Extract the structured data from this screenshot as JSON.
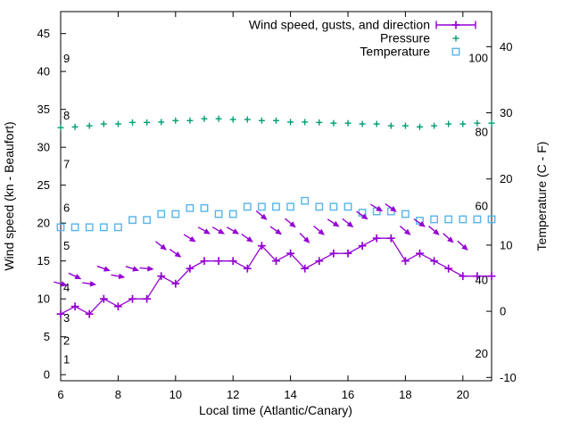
{
  "chart_data": {
    "type": "line",
    "xlabel": "Local time (Atlantic/Canary)",
    "ylabel": "Wind speed (kn - Beaufort)",
    "y2label": "Temperature (C - F)",
    "colors": {
      "wind": "#9400d3",
      "pressure": "#009e73",
      "temperature": "#56b4e9",
      "axis": "#000000"
    },
    "legend": {
      "position": "top-right-inside",
      "entries": [
        {
          "label": "Wind speed, gusts, and direction",
          "sample": "errorbar",
          "color": "#9400d3"
        },
        {
          "label": "Pressure",
          "sample": "plus",
          "color": "#009e73"
        },
        {
          "label": "Temperature",
          "sample": "square",
          "color": "#56b4e9"
        }
      ]
    },
    "axes": {
      "x": {
        "range": [
          6,
          21
        ],
        "ticks": [
          6,
          8,
          10,
          12,
          14,
          16,
          18,
          20
        ]
      },
      "y_wind_kn": {
        "range": [
          -0.8,
          47.9
        ],
        "ticks": [
          0,
          5,
          10,
          15,
          20,
          25,
          30,
          35,
          40,
          45
        ]
      },
      "y_temperature_c": {
        "range": [
          -10.5,
          45.3
        ],
        "ticks": [
          40,
          30,
          20,
          10,
          0,
          -10
        ]
      },
      "y_pressure_scale": {
        "range": [
          12.7,
          112.6
        ],
        "inner_tick_labels": [
          100,
          80,
          60,
          40,
          20
        ]
      },
      "beaufort_inner_labels": [
        {
          "label": "1",
          "kn": 2
        },
        {
          "label": "2",
          "kn": 4.5
        },
        {
          "label": "3",
          "kn": 7.5
        },
        {
          "label": "4",
          "kn": 11.5
        },
        {
          "label": "5",
          "kn": 17
        },
        {
          "label": "6",
          "kn": 22
        },
        {
          "label": "7",
          "kn": 27.8
        },
        {
          "label": "8",
          "kn": 34.2
        },
        {
          "label": "9",
          "kn": 41.7
        }
      ]
    },
    "x": [
      6,
      6.5,
      7,
      7.5,
      8,
      8.5,
      9,
      9.5,
      10,
      10.5,
      11,
      11.5,
      12,
      12.5,
      13,
      13.5,
      14,
      14.5,
      15,
      15.5,
      16,
      16.5,
      17,
      17.5,
      18,
      18.5,
      19,
      19.5,
      20,
      20.5,
      21
    ],
    "series": [
      {
        "name": "wind_speed_kn",
        "style": "line+plus",
        "values": [
          8,
          9,
          8,
          10,
          9,
          10,
          10,
          13,
          12,
          14,
          15,
          15,
          15,
          14,
          17,
          15,
          16,
          14,
          15,
          16,
          16,
          17,
          18,
          18,
          15,
          16,
          15,
          14,
          13,
          13,
          13
        ]
      },
      {
        "name": "wind_gust_kn",
        "style": "direction-arrows",
        "x": [
          6,
          6.5,
          7,
          7.5,
          8,
          8.5,
          9,
          9.5,
          10,
          10.5,
          11,
          11.5,
          12,
          12.5,
          13,
          13.5,
          14,
          14.5,
          15,
          15.5,
          16,
          16.5,
          17,
          17.5,
          18,
          18.5,
          19,
          19.5,
          20
        ],
        "values": [
          12,
          13,
          12,
          14,
          13,
          14,
          14,
          17,
          16,
          18,
          19,
          19,
          19,
          18,
          21,
          19,
          20,
          18,
          19,
          20,
          20,
          21,
          22,
          22,
          19,
          20,
          19,
          18,
          17
        ],
        "direction_deg_from_east": [
          15,
          25,
          8,
          20,
          10,
          18,
          5,
          38,
          35,
          32,
          30,
          30,
          30,
          35,
          40,
          35,
          40,
          45,
          40,
          33,
          38,
          35,
          30,
          35,
          40,
          35,
          40,
          42,
          42
        ]
      },
      {
        "name": "pressure",
        "style": "plus",
        "values": [
          81.2,
          81.4,
          81.7,
          82.2,
          82.2,
          82.6,
          82.6,
          82.7,
          83.1,
          83.1,
          83.6,
          83.6,
          83.4,
          83.4,
          83.1,
          83.1,
          82.7,
          82.7,
          82.6,
          82.4,
          82.4,
          82.2,
          82.2,
          81.7,
          81.7,
          81.4,
          81.7,
          82.2,
          82.2,
          82.4,
          82.4
        ]
      },
      {
        "name": "temperature_c",
        "style": "open-square",
        "values": [
          12.7,
          12.7,
          12.7,
          12.7,
          12.7,
          13.8,
          13.8,
          14.7,
          14.7,
          15.6,
          15.6,
          14.7,
          14.7,
          15.8,
          15.8,
          15.8,
          15.8,
          16.7,
          15.8,
          15.8,
          15.8,
          14.9,
          15.1,
          15.1,
          14.7,
          13.7,
          13.9,
          13.9,
          13.9,
          13.9,
          13.9
        ]
      }
    ]
  }
}
